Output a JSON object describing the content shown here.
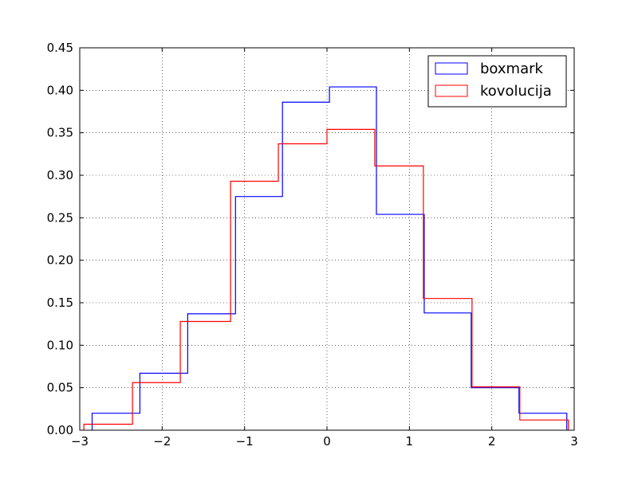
{
  "chart_data": {
    "type": "histogram-step",
    "title": "",
    "xlabel": "",
    "ylabel": "",
    "xlim": [
      -3,
      3
    ],
    "ylim": [
      0,
      0.45
    ],
    "grid": true,
    "legend_position": "top-right",
    "x_ticks": [
      {
        "value": -3,
        "label": "−3"
      },
      {
        "value": -2,
        "label": "−2"
      },
      {
        "value": -1,
        "label": "−1"
      },
      {
        "value": 0,
        "label": "0"
      },
      {
        "value": 1,
        "label": "1"
      },
      {
        "value": 2,
        "label": "2"
      },
      {
        "value": 3,
        "label": "3"
      }
    ],
    "y_ticks": [
      {
        "value": 0.0,
        "label": "0.00"
      },
      {
        "value": 0.05,
        "label": "0.05"
      },
      {
        "value": 0.1,
        "label": "0.10"
      },
      {
        "value": 0.15,
        "label": "0.15"
      },
      {
        "value": 0.2,
        "label": "0.20"
      },
      {
        "value": 0.25,
        "label": "0.25"
      },
      {
        "value": 0.3,
        "label": "0.30"
      },
      {
        "value": 0.35,
        "label": "0.35"
      },
      {
        "value": 0.4,
        "label": "0.40"
      },
      {
        "value": 0.45,
        "label": "0.45"
      }
    ],
    "series": [
      {
        "name": "boxmark",
        "color": "#0000ff",
        "edges": [
          -2.85,
          -2.27,
          -1.69,
          -1.11,
          -0.54,
          0.03,
          0.6,
          1.18,
          1.75,
          2.33,
          2.91
        ],
        "values": [
          0.02,
          0.067,
          0.137,
          0.275,
          0.386,
          0.404,
          0.254,
          0.138,
          0.05,
          0.02
        ]
      },
      {
        "name": "kovolucija",
        "color": "#ff0000",
        "edges": [
          -2.95,
          -2.36,
          -1.78,
          -1.17,
          -0.59,
          0.0,
          0.58,
          1.17,
          1.76,
          2.34,
          2.93
        ],
        "values": [
          0.007,
          0.056,
          0.128,
          0.293,
          0.337,
          0.354,
          0.311,
          0.155,
          0.051,
          0.012
        ]
      }
    ]
  }
}
